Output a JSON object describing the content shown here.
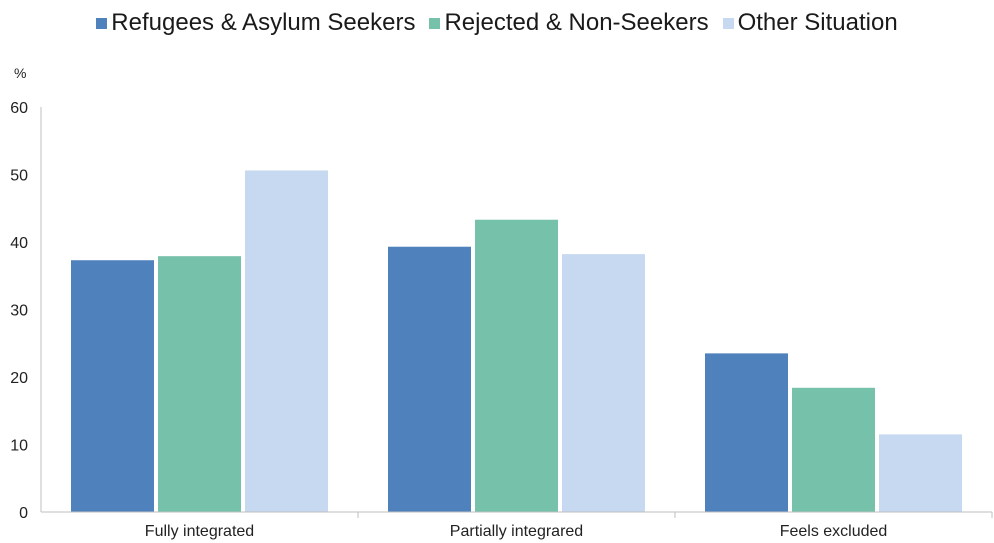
{
  "chart_data": {
    "type": "bar",
    "categories": [
      "Fully integrated",
      "Partially integrared",
      "Feels excluded"
    ],
    "series": [
      {
        "name": "Refugees & Asylum Seekers",
        "color": "#4f81bd",
        "values": [
          37.3,
          39.3,
          23.5
        ]
      },
      {
        "name": "Rejected & Non-Seekers",
        "color": "#76c1aa",
        "values": [
          37.9,
          43.3,
          18.4
        ]
      },
      {
        "name": "Other Situation",
        "color": "#c6d9f0",
        "values": [
          50.6,
          38.2,
          11.5
        ]
      }
    ],
    "ylabel": "%",
    "ylim": [
      0,
      60
    ],
    "yticks": [
      0,
      10,
      20,
      30,
      40,
      50,
      60
    ],
    "grid": false,
    "legend_position": "top"
  }
}
